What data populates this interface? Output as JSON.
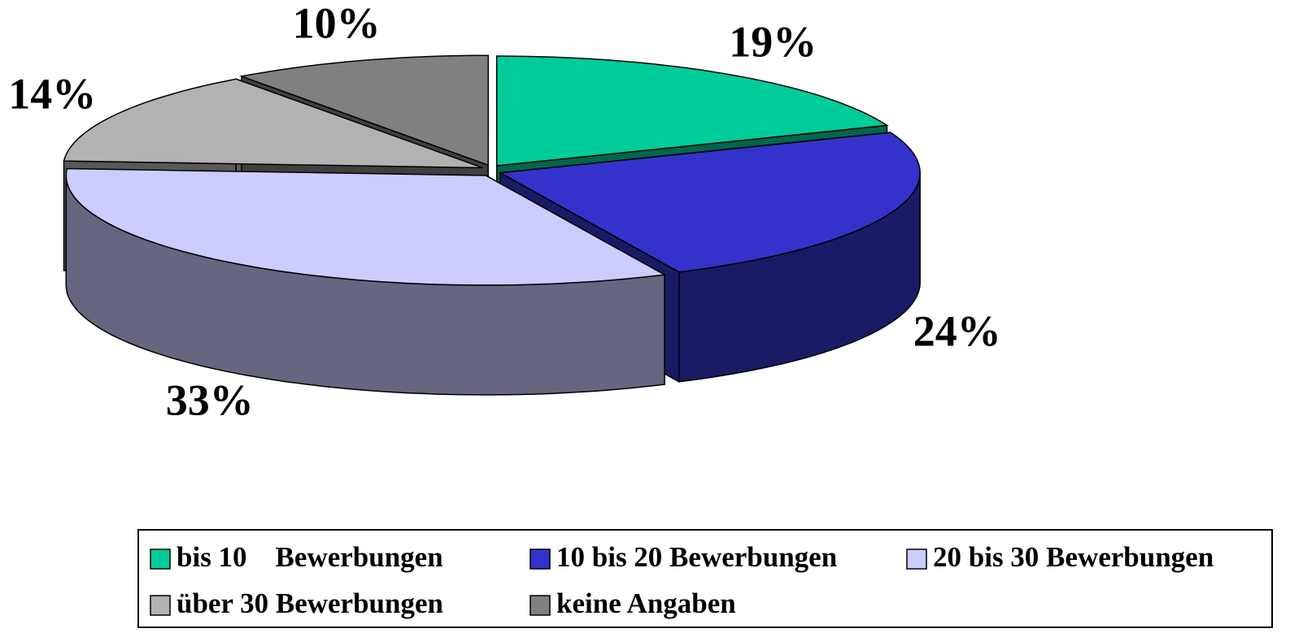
{
  "chart_data": {
    "type": "pie",
    "categories": [
      "bis 10    Bewerbungen",
      "10 bis 20 Bewerbungen",
      "20 bis 30 Bewerbungen",
      "über 30 Bewerbungen",
      "keine Angaben"
    ],
    "values": [
      19,
      24,
      33,
      14,
      10
    ],
    "value_labels": [
      "19%",
      "24%",
      "33%",
      "14%",
      "10%"
    ],
    "colors": [
      "#00cc99",
      "#3333cc",
      "#ccccff",
      "#b2b2b2",
      "#808080"
    ],
    "legend": "bottom"
  }
}
